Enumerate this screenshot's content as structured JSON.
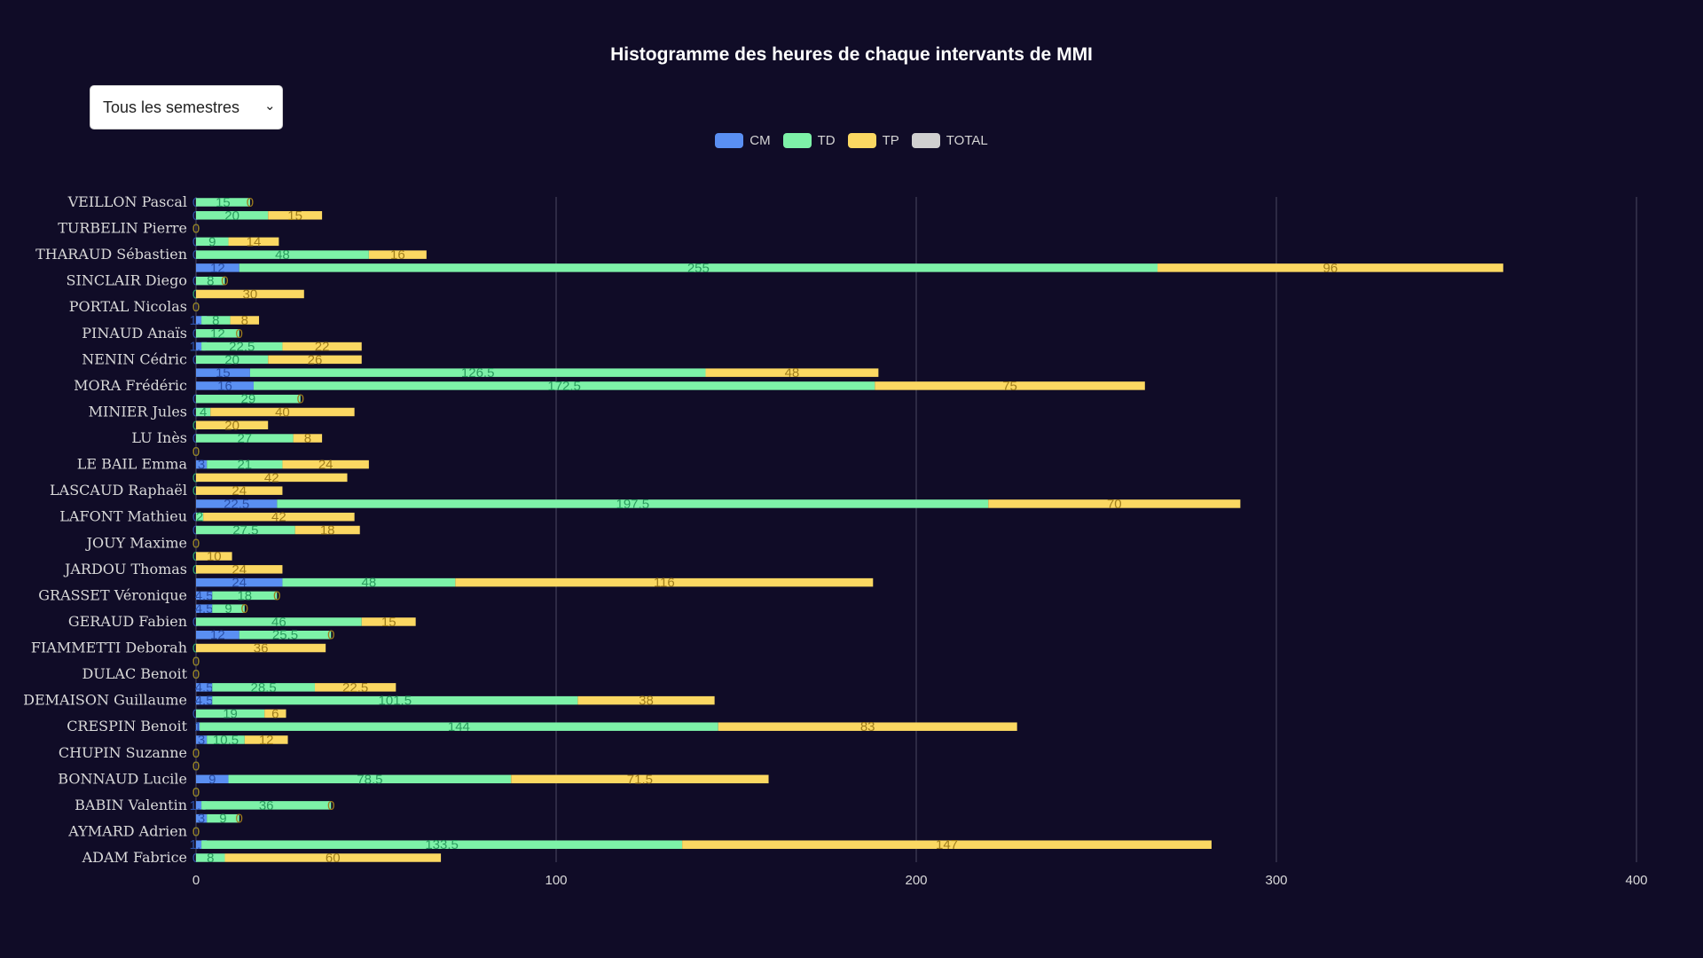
{
  "chart_data": {
    "type": "bar",
    "orientation": "horizontal",
    "stacked": true,
    "title": "Histogramme des heures de chaque intervants de MMI",
    "xlim": [
      0,
      400
    ],
    "x_ticks": [
      0,
      100,
      200,
      300,
      400
    ],
    "grid": "vertical",
    "legend_position": "top-center",
    "series": [
      {
        "name": "CM",
        "color": "#5a8ff2"
      },
      {
        "name": "TD",
        "color": "#7df2a8"
      },
      {
        "name": "TP",
        "color": "#fbd862"
      },
      {
        "name": "TOTAL",
        "color": "#d0d0d0"
      }
    ],
    "people": [
      {
        "name": "VEILLON Pascal",
        "bars": [
          [
            0,
            15,
            0
          ],
          [
            0,
            20,
            15
          ]
        ]
      },
      {
        "name": "TURBELIN Pierre",
        "bars": [
          [
            0,
            0,
            0
          ],
          [
            0,
            9,
            14
          ]
        ]
      },
      {
        "name": "THARAUD Sébastien",
        "bars": [
          [
            0,
            48,
            16
          ],
          [
            12,
            255,
            96
          ]
        ]
      },
      {
        "name": "SINCLAIR Diego",
        "bars": [
          [
            0,
            8,
            0
          ],
          [
            0,
            0,
            30
          ]
        ]
      },
      {
        "name": "PORTAL Nicolas",
        "bars": [
          [
            0,
            0,
            0
          ],
          [
            1.5,
            8,
            8
          ]
        ]
      },
      {
        "name": "PINAUD Anaïs",
        "bars": [
          [
            0,
            12,
            0
          ],
          [
            1.5,
            22.5,
            22
          ]
        ]
      },
      {
        "name": "NENIN Cédric",
        "bars": [
          [
            0,
            20,
            26
          ],
          [
            15,
            126.5,
            48
          ]
        ]
      },
      {
        "name": "MORA Frédéric",
        "bars": [
          [
            16,
            172.5,
            75
          ],
          [
            0,
            29,
            0
          ]
        ]
      },
      {
        "name": "MINIER Jules",
        "bars": [
          [
            0,
            4,
            40
          ],
          [
            0,
            0,
            20
          ]
        ]
      },
      {
        "name": "LU Inès",
        "bars": [
          [
            0,
            27,
            8
          ],
          [
            0,
            0,
            0
          ]
        ]
      },
      {
        "name": "LE BAIL Emma",
        "bars": [
          [
            3,
            21,
            24
          ],
          [
            0,
            0,
            42
          ]
        ]
      },
      {
        "name": "LASCAUD Raphaël",
        "bars": [
          [
            0,
            0,
            24
          ],
          [
            22.5,
            197.5,
            70
          ]
        ]
      },
      {
        "name": "LAFONT Mathieu",
        "bars": [
          [
            0,
            2,
            42
          ],
          [
            0,
            27.5,
            18
          ]
        ]
      },
      {
        "name": "JOUY Maxime",
        "bars": [
          [
            0,
            0,
            0
          ],
          [
            0,
            0,
            10
          ]
        ]
      },
      {
        "name": "JARDOU Thomas",
        "bars": [
          [
            0,
            0,
            24
          ],
          [
            24,
            48,
            116
          ]
        ]
      },
      {
        "name": "GRASSET Véronique",
        "bars": [
          [
            4.5,
            18,
            0
          ],
          [
            4.5,
            9,
            0
          ]
        ]
      },
      {
        "name": "GERAUD Fabien",
        "bars": [
          [
            0,
            46,
            15
          ],
          [
            12,
            25.5,
            0
          ]
        ]
      },
      {
        "name": "FIAMMETTI Deborah",
        "bars": [
          [
            0,
            0,
            36
          ],
          [
            0,
            0,
            0
          ]
        ]
      },
      {
        "name": "DULAC Benoit",
        "bars": [
          [
            0,
            0,
            0
          ],
          [
            4.5,
            28.5,
            22.5
          ]
        ]
      },
      {
        "name": "DEMAISON Guillaume",
        "bars": [
          [
            4.5,
            101.5,
            38
          ],
          [
            0,
            19,
            6
          ]
        ]
      },
      {
        "name": "CRESPIN Benoit",
        "bars": [
          [
            1,
            144,
            83
          ],
          [
            3,
            10.5,
            12
          ]
        ]
      },
      {
        "name": "CHUPIN Suzanne",
        "bars": [
          [
            0,
            0,
            0
          ],
          [
            0,
            0,
            0
          ]
        ]
      },
      {
        "name": "BONNAUD Lucile",
        "bars": [
          [
            9,
            78.5,
            71.5
          ],
          [
            0,
            0,
            0
          ]
        ]
      },
      {
        "name": "BABIN Valentin",
        "bars": [
          [
            1.5,
            36,
            0
          ],
          [
            3,
            9,
            0
          ]
        ]
      },
      {
        "name": "AYMARD Adrien",
        "bars": [
          [
            0,
            0,
            0
          ],
          [
            1.5,
            133.5,
            147
          ]
        ]
      },
      {
        "name": "ADAM Fabrice",
        "bars": [
          [
            0,
            8,
            60
          ]
        ]
      }
    ]
  },
  "filter": {
    "selected": "Tous les semestres"
  }
}
